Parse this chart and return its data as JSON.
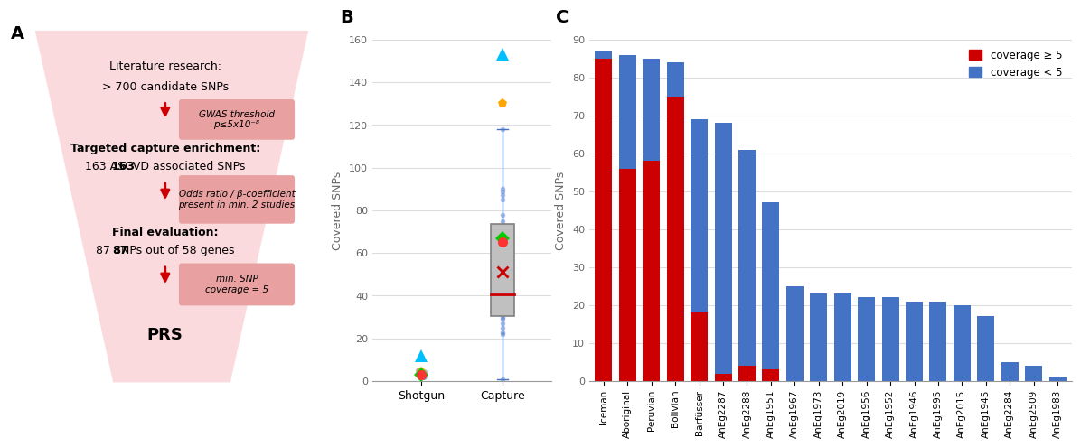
{
  "panel_labels": [
    "A",
    "B",
    "C"
  ],
  "funnel": {
    "bg_color": "#FADADD",
    "box_color": "#E8A0A0",
    "arrow_color": "#CC0000"
  },
  "boxplot": {
    "ylabel": "Covered SNPs",
    "ylim": [
      0,
      160
    ],
    "yticks": [
      0,
      20,
      40,
      60,
      80,
      100,
      120,
      140,
      160
    ],
    "categories": [
      "Shotgun",
      "Capture"
    ],
    "shotgun_data": [
      2,
      2,
      2,
      3,
      3,
      3,
      3,
      4,
      4,
      4,
      5
    ],
    "capture_data": [
      1,
      22,
      23,
      25,
      27,
      29,
      30,
      32,
      33,
      35,
      38,
      39,
      40,
      41,
      43,
      47,
      65,
      68,
      70,
      75,
      78,
      85,
      87,
      89,
      90,
      118
    ],
    "special_shotgun": [
      {
        "value": 12,
        "color": "#00BFFF",
        "marker": "^"
      },
      {
        "value": 4,
        "color": "#FFA500",
        "marker": "p"
      },
      {
        "value": 3,
        "color": "#00CC00",
        "marker": "D"
      },
      {
        "value": 3,
        "color": "#FF3333",
        "marker": "o"
      }
    ],
    "special_capture": [
      {
        "value": 153,
        "color": "#00BFFF",
        "marker": "^"
      },
      {
        "value": 130,
        "color": "#FFA500",
        "marker": "p"
      },
      {
        "value": 67,
        "color": "#00CC00",
        "marker": "D"
      },
      {
        "value": 65,
        "color": "#FF3333",
        "marker": "o"
      }
    ],
    "box_facecolor": "#C0C0C0",
    "box_edgecolor": "#808080",
    "whisker_color": "#4472C4",
    "data_point_color": "#4472C4",
    "median_color": "#CC0000",
    "mean_marker_color": "#CC0000"
  },
  "barchart": {
    "ylabel": "Covered SNPs",
    "ylim": [
      0,
      90
    ],
    "yticks": [
      0,
      10,
      20,
      30,
      40,
      50,
      60,
      70,
      80,
      90
    ],
    "categories": [
      "Iceman",
      "Aboriginal",
      "Peruvian",
      "Bolivian",
      "Barfüsser",
      "AnEg2287",
      "AnEg2288",
      "AnEg1951",
      "AnEg1967",
      "AnEg1973",
      "AnEg2019",
      "AnEg1956",
      "AnEg1952",
      "AnEg1946",
      "AnEg1995",
      "AnEg2015",
      "AnEg1945",
      "AnEg2284",
      "AnEg2509",
      "AnEg1983"
    ],
    "red_values": [
      85,
      56,
      58,
      75,
      18,
      2,
      4,
      3,
      0,
      0,
      0,
      0,
      0,
      0,
      0,
      0,
      0,
      0,
      0,
      0
    ],
    "blue_values": [
      2,
      30,
      27,
      9,
      51,
      66,
      57,
      44,
      25,
      23,
      23,
      22,
      22,
      21,
      21,
      20,
      17,
      5,
      4,
      1
    ],
    "red_color": "#CC0000",
    "blue_color": "#4472C4",
    "legend_red": "coverage ≥ 5",
    "legend_blue": "coverage < 5"
  }
}
